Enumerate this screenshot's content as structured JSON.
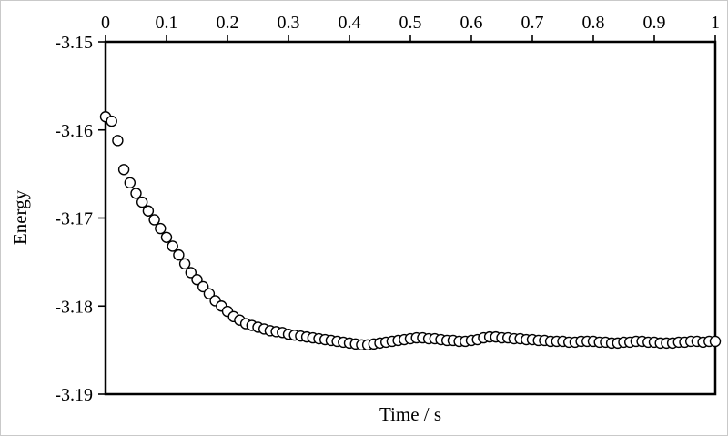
{
  "figure": {
    "background": "#ffffff",
    "frame_color": "#c9c9c9"
  },
  "chart_data": {
    "type": "scatter",
    "title": "",
    "xlabel": "Time / s",
    "ylabel": "Energy",
    "x_axis_position": "top",
    "grid": false,
    "legend": "none",
    "xlim": [
      0,
      1
    ],
    "ylim": [
      -3.19,
      -3.15
    ],
    "xticks": [
      0,
      0.1,
      0.2,
      0.3,
      0.4,
      0.5,
      0.6,
      0.7,
      0.8,
      0.9,
      1
    ],
    "xtick_labels": [
      "0",
      "0.1",
      "0.2",
      "0.3",
      "0.4",
      "0.5",
      "0.6",
      "0.7",
      "0.8",
      "0.9",
      "1"
    ],
    "yticks": [
      -3.15,
      -3.16,
      -3.17,
      -3.18,
      -3.19
    ],
    "ytick_labels": [
      "-3.15",
      "-3.16",
      "-3.17",
      "-3.18",
      "-3.19"
    ],
    "marker": {
      "shape": "circle-open",
      "stroke": "#000000",
      "fill": "#ffffff",
      "radius": 5.5,
      "stroke_width": 1.4
    },
    "axis_color": "#000000",
    "series": [
      {
        "name": "Energy",
        "x": [
          0.0,
          0.01,
          0.02,
          0.03,
          0.04,
          0.05,
          0.06,
          0.07,
          0.08,
          0.09,
          0.1,
          0.11,
          0.12,
          0.13,
          0.14,
          0.15,
          0.16,
          0.17,
          0.18,
          0.19,
          0.2,
          0.21,
          0.22,
          0.23,
          0.24,
          0.25,
          0.26,
          0.27,
          0.28,
          0.29,
          0.3,
          0.31,
          0.32,
          0.33,
          0.34,
          0.35,
          0.36,
          0.37,
          0.38,
          0.39,
          0.4,
          0.41,
          0.42,
          0.43,
          0.44,
          0.45,
          0.46,
          0.47,
          0.48,
          0.49,
          0.5,
          0.51,
          0.52,
          0.53,
          0.54,
          0.55,
          0.56,
          0.57,
          0.58,
          0.59,
          0.6,
          0.61,
          0.62,
          0.63,
          0.64,
          0.65,
          0.66,
          0.67,
          0.68,
          0.69,
          0.7,
          0.71,
          0.72,
          0.73,
          0.74,
          0.75,
          0.76,
          0.77,
          0.78,
          0.79,
          0.8,
          0.81,
          0.82,
          0.83,
          0.84,
          0.85,
          0.86,
          0.87,
          0.88,
          0.89,
          0.9,
          0.91,
          0.92,
          0.93,
          0.94,
          0.95,
          0.96,
          0.97,
          0.98,
          0.99,
          1.0
        ],
        "y": [
          -3.1585,
          -3.159,
          -3.1612,
          -3.1645,
          -3.166,
          -3.1672,
          -3.1682,
          -3.1692,
          -3.1702,
          -3.1712,
          -3.1722,
          -3.1732,
          -3.1742,
          -3.1752,
          -3.1762,
          -3.177,
          -3.1778,
          -3.1786,
          -3.1794,
          -3.18,
          -3.1806,
          -3.1812,
          -3.1816,
          -3.182,
          -3.1822,
          -3.1824,
          -3.1826,
          -3.1828,
          -3.1829,
          -3.183,
          -3.1832,
          -3.1833,
          -3.1834,
          -3.1835,
          -3.1836,
          -3.1837,
          -3.1838,
          -3.1839,
          -3.184,
          -3.1841,
          -3.1842,
          -3.1843,
          -3.1844,
          -3.1844,
          -3.1843,
          -3.1842,
          -3.1841,
          -3.184,
          -3.1839,
          -3.1838,
          -3.1837,
          -3.1836,
          -3.1836,
          -3.1837,
          -3.1837,
          -3.1838,
          -3.1839,
          -3.1839,
          -3.184,
          -3.184,
          -3.1839,
          -3.1838,
          -3.1836,
          -3.1835,
          -3.1835,
          -3.1836,
          -3.1836,
          -3.1837,
          -3.1837,
          -3.1838,
          -3.1838,
          -3.1839,
          -3.1839,
          -3.184,
          -3.184,
          -3.184,
          -3.1841,
          -3.1841,
          -3.184,
          -3.184,
          -3.184,
          -3.1841,
          -3.1841,
          -3.1842,
          -3.1842,
          -3.1841,
          -3.1841,
          -3.184,
          -3.184,
          -3.1841,
          -3.1841,
          -3.1842,
          -3.1842,
          -3.1842,
          -3.1841,
          -3.1841,
          -3.184,
          -3.184,
          -3.1841,
          -3.184,
          -3.184
        ]
      }
    ]
  }
}
